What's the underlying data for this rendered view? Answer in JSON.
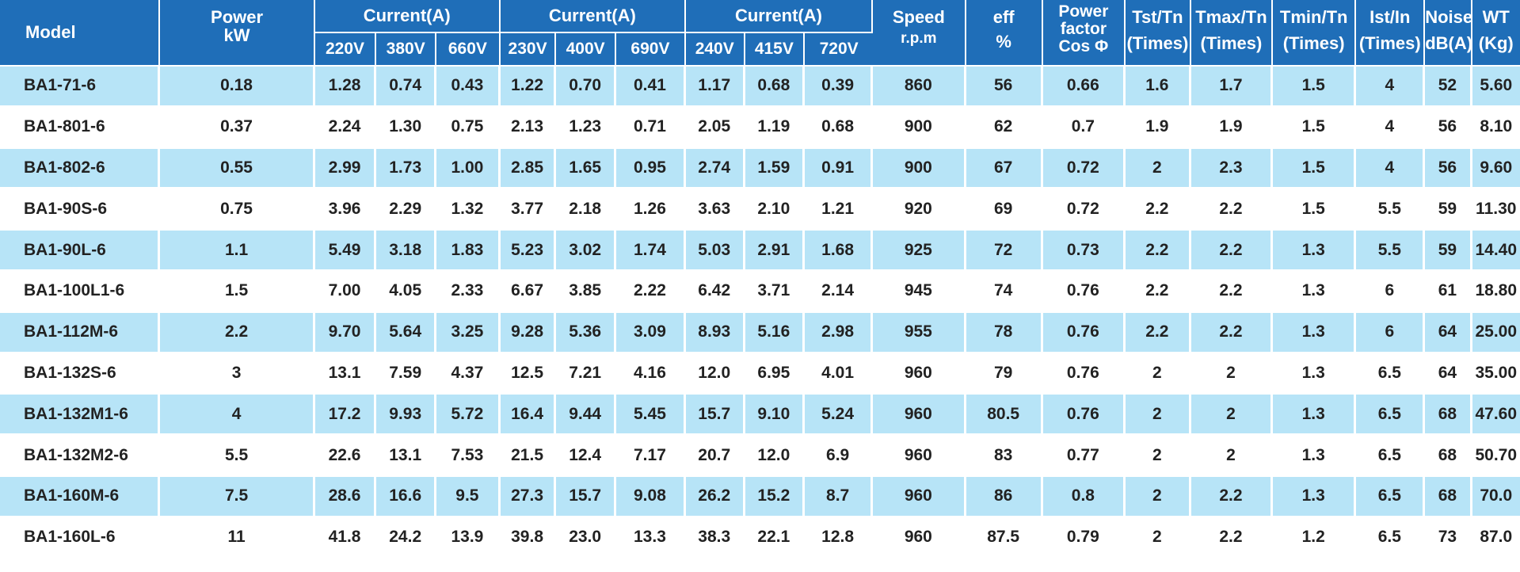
{
  "header": {
    "model": "Model",
    "power": [
      "Power",
      "kW"
    ],
    "current_groups": [
      {
        "label": "Current(A)",
        "volts": [
          "220V",
          "380V",
          "660V"
        ]
      },
      {
        "label": "Current(A)",
        "volts": [
          "230V",
          "400V",
          "690V"
        ]
      },
      {
        "label": "Current(A)",
        "volts": [
          "240V",
          "415V",
          "720V"
        ]
      }
    ],
    "speed": [
      "Speed",
      "r.p.m"
    ],
    "eff": [
      "eff",
      "%"
    ],
    "power_factor": [
      "Power",
      "factor",
      "Cos Φ"
    ],
    "tst": [
      "Tst/Tn",
      "(Times)"
    ],
    "tmax": [
      "Tmax/Tn",
      "(Times)"
    ],
    "tmin": [
      "Tmin/Tn",
      "(Times)"
    ],
    "ist": [
      "Ist/In",
      "(Times)"
    ],
    "noise": [
      "Noise",
      "dB(A)"
    ],
    "wt": [
      "WT",
      "(Kg)"
    ]
  },
  "rows": [
    [
      "BA1-71-6",
      "0.18",
      "1.28",
      "0.74",
      "0.43",
      "1.22",
      "0.70",
      "0.41",
      "1.17",
      "0.68",
      "0.39",
      "860",
      "56",
      "0.66",
      "1.6",
      "1.7",
      "1.5",
      "4",
      "52",
      "5.60"
    ],
    [
      "BA1-801-6",
      "0.37",
      "2.24",
      "1.30",
      "0.75",
      "2.13",
      "1.23",
      "0.71",
      "2.05",
      "1.19",
      "0.68",
      "900",
      "62",
      "0.7",
      "1.9",
      "1.9",
      "1.5",
      "4",
      "56",
      "8.10"
    ],
    [
      "BA1-802-6",
      "0.55",
      "2.99",
      "1.73",
      "1.00",
      "2.85",
      "1.65",
      "0.95",
      "2.74",
      "1.59",
      "0.91",
      "900",
      "67",
      "0.72",
      "2",
      "2.3",
      "1.5",
      "4",
      "56",
      "9.60"
    ],
    [
      "BA1-90S-6",
      "0.75",
      "3.96",
      "2.29",
      "1.32",
      "3.77",
      "2.18",
      "1.26",
      "3.63",
      "2.10",
      "1.21",
      "920",
      "69",
      "0.72",
      "2.2",
      "2.2",
      "1.5",
      "5.5",
      "59",
      "11.30"
    ],
    [
      "BA1-90L-6",
      "1.1",
      "5.49",
      "3.18",
      "1.83",
      "5.23",
      "3.02",
      "1.74",
      "5.03",
      "2.91",
      "1.68",
      "925",
      "72",
      "0.73",
      "2.2",
      "2.2",
      "1.3",
      "5.5",
      "59",
      "14.40"
    ],
    [
      "BA1-100L1-6",
      "1.5",
      "7.00",
      "4.05",
      "2.33",
      "6.67",
      "3.85",
      "2.22",
      "6.42",
      "3.71",
      "2.14",
      "945",
      "74",
      "0.76",
      "2.2",
      "2.2",
      "1.3",
      "6",
      "61",
      "18.80"
    ],
    [
      "BA1-112M-6",
      "2.2",
      "9.70",
      "5.64",
      "3.25",
      "9.28",
      "5.36",
      "3.09",
      "8.93",
      "5.16",
      "2.98",
      "955",
      "78",
      "0.76",
      "2.2",
      "2.2",
      "1.3",
      "6",
      "64",
      "25.00"
    ],
    [
      "BA1-132S-6",
      "3",
      "13.1",
      "7.59",
      "4.37",
      "12.5",
      "7.21",
      "4.16",
      "12.0",
      "6.95",
      "4.01",
      "960",
      "79",
      "0.76",
      "2",
      "2",
      "1.3",
      "6.5",
      "64",
      "35.00"
    ],
    [
      "BA1-132M1-6",
      "4",
      "17.2",
      "9.93",
      "5.72",
      "16.4",
      "9.44",
      "5.45",
      "15.7",
      "9.10",
      "5.24",
      "960",
      "80.5",
      "0.76",
      "2",
      "2",
      "1.3",
      "6.5",
      "68",
      "47.60"
    ],
    [
      "BA1-132M2-6",
      "5.5",
      "22.6",
      "13.1",
      "7.53",
      "21.5",
      "12.4",
      "7.17",
      "20.7",
      "12.0",
      "6.9",
      "960",
      "83",
      "0.77",
      "2",
      "2",
      "1.3",
      "6.5",
      "68",
      "50.70"
    ],
    [
      "BA1-160M-6",
      "7.5",
      "28.6",
      "16.6",
      "9.5",
      "27.3",
      "15.7",
      "9.08",
      "26.2",
      "15.2",
      "8.7",
      "960",
      "86",
      "0.8",
      "2",
      "2.2",
      "1.3",
      "6.5",
      "68",
      "70.0"
    ],
    [
      "BA1-160L-6",
      "11",
      "41.8",
      "24.2",
      "13.9",
      "39.8",
      "23.0",
      "13.3",
      "38.3",
      "22.1",
      "12.8",
      "960",
      "87.5",
      "0.79",
      "2",
      "2.2",
      "1.2",
      "6.5",
      "73",
      "87.0"
    ]
  ],
  "colors": {
    "header_bg": "#1f6eb8",
    "header_text": "#ffffff",
    "stripe_bg": "#b7e4f7",
    "body_text": "#222222"
  }
}
